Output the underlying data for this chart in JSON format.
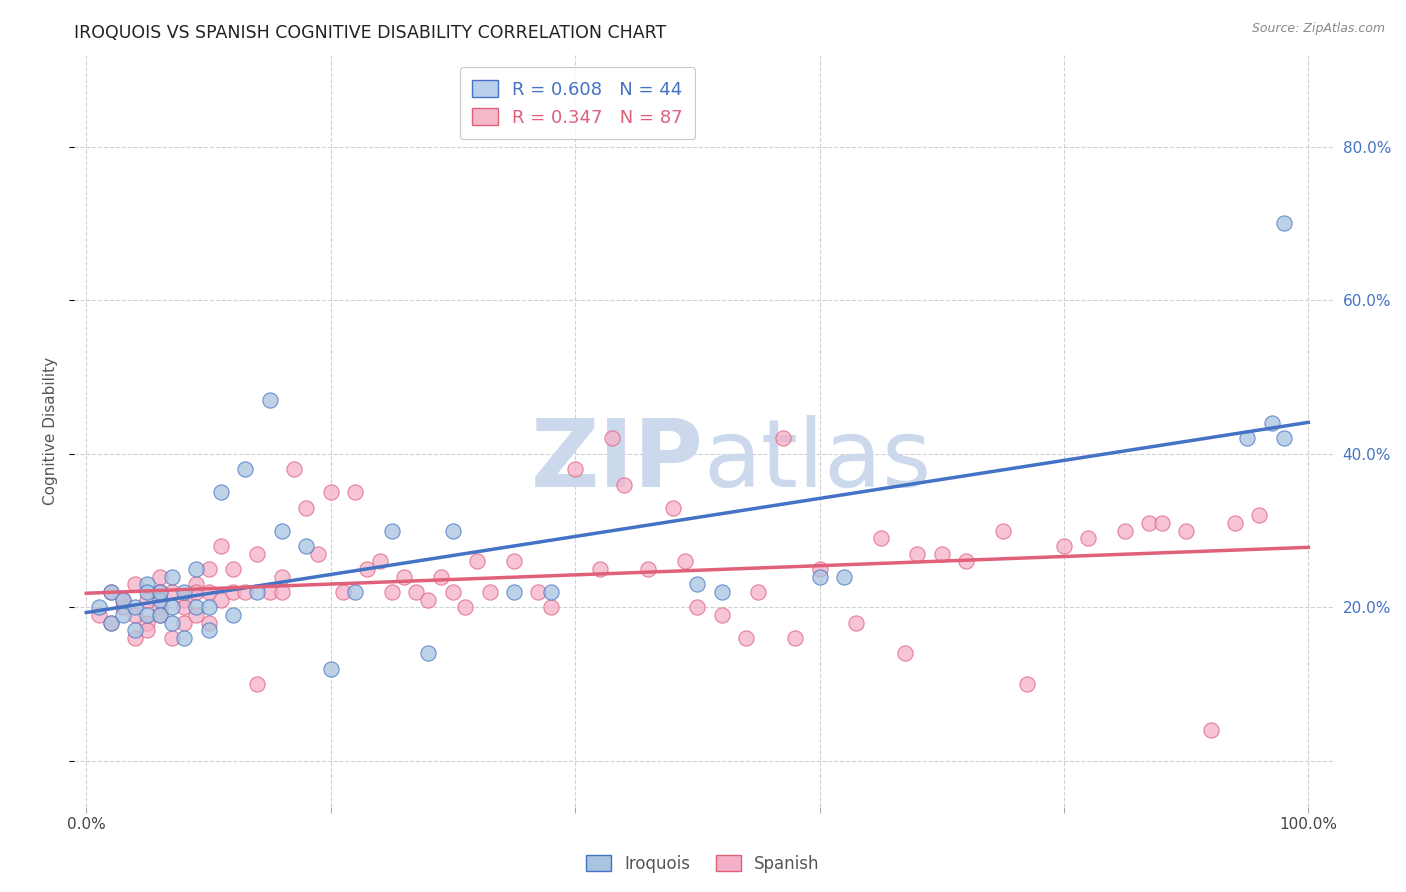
{
  "title": "IROQUOIS VS SPANISH COGNITIVE DISABILITY CORRELATION CHART",
  "source": "Source: ZipAtlas.com",
  "ylabel": "Cognitive Disability",
  "iroquois_color": "#a8c4e0",
  "iroquois_edge_color": "#4472c4",
  "iroquois_line_color": "#4472c4",
  "spanish_color": "#f4b0c8",
  "spanish_edge_color": "#e0607a",
  "spanish_line_color": "#e0607a",
  "background_color": "#ffffff",
  "grid_color": "#cccccc",
  "watermark_color": "#ccd8ec",
  "right_tick_color": "#4472c4",
  "legend_r1": "R = 0.608",
  "legend_n1": "N = 44",
  "legend_r2": "R = 0.347",
  "legend_n2": "N = 87",
  "iroquois_x": [
    0.01,
    0.02,
    0.02,
    0.03,
    0.03,
    0.04,
    0.04,
    0.05,
    0.05,
    0.05,
    0.06,
    0.06,
    0.06,
    0.07,
    0.07,
    0.07,
    0.08,
    0.08,
    0.09,
    0.09,
    0.1,
    0.1,
    0.11,
    0.12,
    0.13,
    0.14,
    0.15,
    0.16,
    0.18,
    0.2,
    0.22,
    0.25,
    0.28,
    0.3,
    0.35,
    0.38,
    0.5,
    0.52,
    0.6,
    0.62,
    0.95,
    0.97,
    0.98,
    0.98
  ],
  "iroquois_y": [
    0.2,
    0.22,
    0.18,
    0.21,
    0.19,
    0.2,
    0.17,
    0.23,
    0.22,
    0.19,
    0.21,
    0.19,
    0.22,
    0.24,
    0.2,
    0.18,
    0.22,
    0.16,
    0.2,
    0.25,
    0.17,
    0.2,
    0.35,
    0.19,
    0.38,
    0.22,
    0.47,
    0.3,
    0.28,
    0.12,
    0.22,
    0.3,
    0.14,
    0.3,
    0.22,
    0.22,
    0.23,
    0.22,
    0.24,
    0.24,
    0.42,
    0.44,
    0.42,
    0.7
  ],
  "spanish_x": [
    0.01,
    0.02,
    0.02,
    0.03,
    0.03,
    0.04,
    0.04,
    0.04,
    0.05,
    0.05,
    0.05,
    0.06,
    0.06,
    0.06,
    0.06,
    0.07,
    0.07,
    0.08,
    0.08,
    0.08,
    0.09,
    0.09,
    0.09,
    0.1,
    0.1,
    0.1,
    0.11,
    0.11,
    0.12,
    0.12,
    0.13,
    0.14,
    0.14,
    0.15,
    0.16,
    0.16,
    0.17,
    0.18,
    0.19,
    0.2,
    0.21,
    0.22,
    0.23,
    0.24,
    0.25,
    0.26,
    0.27,
    0.28,
    0.29,
    0.3,
    0.31,
    0.32,
    0.33,
    0.35,
    0.37,
    0.38,
    0.4,
    0.42,
    0.43,
    0.44,
    0.46,
    0.48,
    0.49,
    0.5,
    0.52,
    0.54,
    0.55,
    0.57,
    0.58,
    0.6,
    0.63,
    0.65,
    0.67,
    0.68,
    0.7,
    0.72,
    0.75,
    0.77,
    0.8,
    0.82,
    0.85,
    0.87,
    0.88,
    0.9,
    0.92,
    0.94,
    0.96
  ],
  "spanish_y": [
    0.19,
    0.18,
    0.22,
    0.2,
    0.21,
    0.19,
    0.16,
    0.23,
    0.18,
    0.21,
    0.17,
    0.2,
    0.19,
    0.22,
    0.24,
    0.16,
    0.22,
    0.21,
    0.18,
    0.2,
    0.23,
    0.19,
    0.22,
    0.25,
    0.18,
    0.22,
    0.21,
    0.28,
    0.25,
    0.22,
    0.22,
    0.1,
    0.27,
    0.22,
    0.24,
    0.22,
    0.38,
    0.33,
    0.27,
    0.35,
    0.22,
    0.35,
    0.25,
    0.26,
    0.22,
    0.24,
    0.22,
    0.21,
    0.24,
    0.22,
    0.2,
    0.26,
    0.22,
    0.26,
    0.22,
    0.2,
    0.38,
    0.25,
    0.42,
    0.36,
    0.25,
    0.33,
    0.26,
    0.2,
    0.19,
    0.16,
    0.22,
    0.42,
    0.16,
    0.25,
    0.18,
    0.29,
    0.14,
    0.27,
    0.27,
    0.26,
    0.3,
    0.1,
    0.28,
    0.29,
    0.3,
    0.31,
    0.31,
    0.3,
    0.04,
    0.31,
    0.32
  ],
  "xlim": [
    -0.01,
    1.02
  ],
  "ylim": [
    -0.06,
    0.92
  ],
  "yticks": [
    0.0,
    0.2,
    0.4,
    0.6,
    0.8
  ],
  "ytick_labels": [
    "",
    "20.0%",
    "40.0%",
    "60.0%",
    "80.0%"
  ],
  "xtick_labels_show": [
    "0.0%",
    "100.0%"
  ],
  "dot_size": 120,
  "dot_alpha": 0.75,
  "line_width": 2.5
}
